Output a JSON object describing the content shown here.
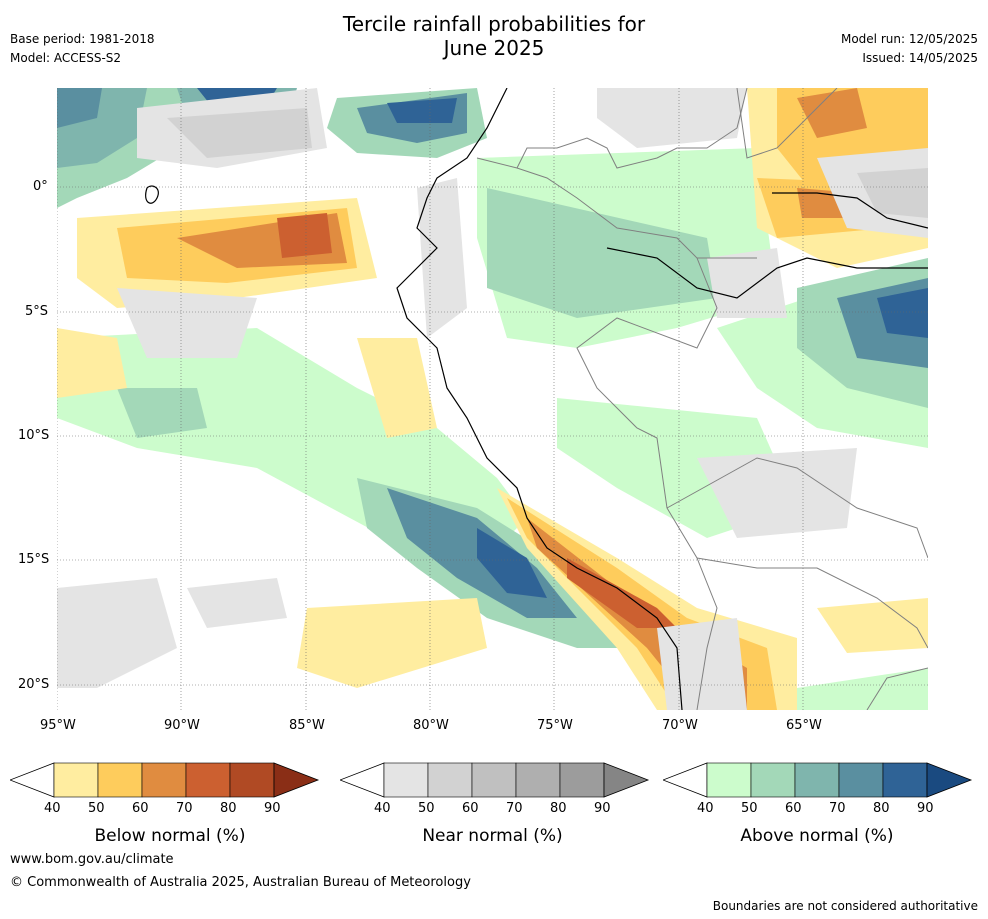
{
  "header": {
    "title_line1": "Tercile rainfall probabilities for",
    "title_line2": "June 2025",
    "base_period": "Base period: 1981-2018",
    "model": "Model: ACCESS-S2",
    "model_run": "Model run: 12/05/2025",
    "issued": "Issued: 14/05/2025"
  },
  "map": {
    "lat_labels": [
      "0°",
      "5°S",
      "10°S",
      "15°S",
      "20°S"
    ],
    "lon_labels": [
      "95°W",
      "90°W",
      "85°W",
      "80°W",
      "75°W",
      "70°W",
      "65°W"
    ],
    "coastline_color": "#000000",
    "border_color": "#808080"
  },
  "colorbars": [
    {
      "title": "Below normal (%)",
      "ticks": [
        "40",
        "50",
        "60",
        "70",
        "80",
        "90"
      ],
      "colors": [
        "#ffeda0",
        "#fecc5c",
        "#e08c40",
        "#cc6030",
        "#b04a24",
        "#8a2e16"
      ]
    },
    {
      "title": "Near normal (%)",
      "ticks": [
        "40",
        "50",
        "60",
        "70",
        "80",
        "90"
      ],
      "colors": [
        "#e4e4e4",
        "#d2d2d2",
        "#c0c0c0",
        "#afafaf",
        "#9c9c9c",
        "#858585"
      ]
    },
    {
      "title": "Above normal (%)",
      "ticks": [
        "40",
        "50",
        "60",
        "70",
        "80",
        "90"
      ],
      "colors": [
        "#ccfccc",
        "#a3d8b8",
        "#7fb5ad",
        "#5a8fa0",
        "#2f6396",
        "#1a4a80"
      ]
    }
  ],
  "footer": {
    "website": "www.bom.gov.au/climate",
    "copyright": "© Commonwealth of Australia 2025, Australian Bureau of Meteorology",
    "disclaimer": "Boundaries are not considered authoritative"
  }
}
